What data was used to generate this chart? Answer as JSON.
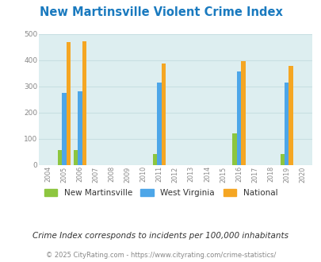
{
  "title": "New Martinsville Violent Crime Index",
  "title_color": "#1a7abf",
  "plot_bg_color": "#ddeef0",
  "years": [
    2004,
    2005,
    2006,
    2007,
    2008,
    2009,
    2010,
    2011,
    2012,
    2013,
    2014,
    2015,
    2016,
    2017,
    2018,
    2019,
    2020
  ],
  "new_martinsville": {
    "2005": 58,
    "2006": 58,
    "2011": 43,
    "2016": 120,
    "2019": 43
  },
  "west_virginia": {
    "2005": 275,
    "2006": 283,
    "2011": 316,
    "2016": 357,
    "2019": 315
  },
  "national": {
    "2005": 469,
    "2006": 473,
    "2011": 387,
    "2016": 397,
    "2019": 379
  },
  "color_nm": "#8dc63f",
  "color_wv": "#4da6e8",
  "color_nat": "#f5a623",
  "ylabel_vals": [
    0,
    100,
    200,
    300,
    400,
    500
  ],
  "ylim": [
    0,
    500
  ],
  "legend_labels": [
    "New Martinsville",
    "West Virginia",
    "National"
  ],
  "footnote1": "Crime Index corresponds to incidents per 100,000 inhabitants",
  "footnote2": "© 2025 CityRating.com - https://www.cityrating.com/crime-statistics/",
  "bar_width": 0.27,
  "grid_color": "#c8dfe2"
}
